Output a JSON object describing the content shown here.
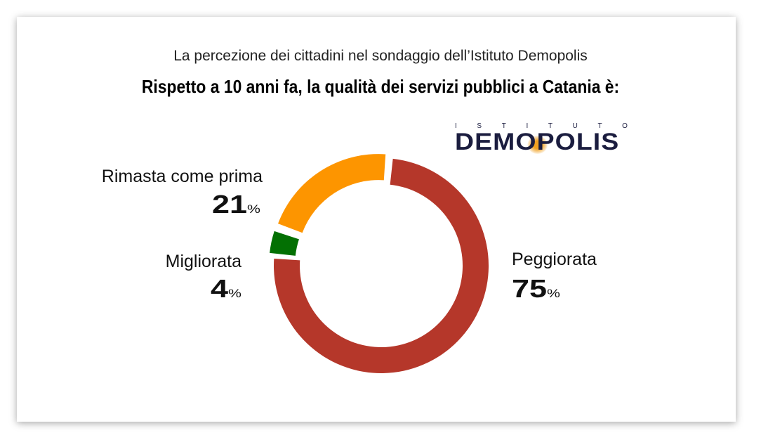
{
  "header": {
    "subtitle": "La percezione dei cittadini nel sondaggio dell’Istituto Demopolis",
    "title": "Rispetto a 10 anni fa, la qualità dei servizi pubblici a Catania è:"
  },
  "logo": {
    "top": "ISTITUTO",
    "main": "DEMOPOLIS"
  },
  "chart_data": {
    "type": "pie",
    "variant": "donut",
    "title": "Rispetto a 10 anni fa, la qualità dei servizi pubblici a Catania è:",
    "categories": [
      "Peggiorata",
      "Migliorata",
      "Rimasta come prima"
    ],
    "values": [
      75,
      4,
      21
    ],
    "value_labels": [
      "75",
      "4",
      "21"
    ],
    "unit": "%",
    "colors": [
      "#b5372a",
      "#037003",
      "#fd9500"
    ]
  }
}
